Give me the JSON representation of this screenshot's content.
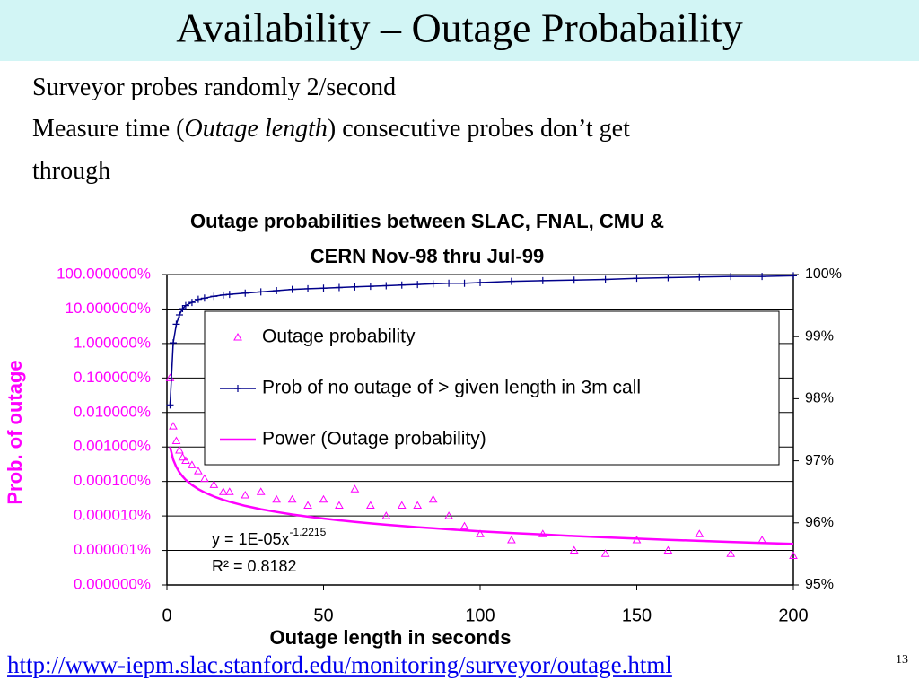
{
  "slide": {
    "title": "Availability – Outage Probabaility",
    "bullets": [
      [
        "Surveyor probes randomly 2/second"
      ],
      [
        "Measure time (",
        "Outage length",
        ") consecutive probes don’t get"
      ],
      [
        "through"
      ]
    ],
    "link": "http://www-iepm.slac.stanford.edu/monitoring/surveyor/outage.html",
    "page_number": "13"
  },
  "chart_data": {
    "type": "line",
    "title": [
      "Outage probabilities between SLAC, FNAL, CMU &",
      "CERN Nov-98 thru Jul-99"
    ],
    "x_label": "Outage length in seconds",
    "y_label": "Prob. of outage",
    "ylog": true,
    "grid": true,
    "xlim": [
      0,
      200
    ],
    "xticks": [
      0,
      50,
      100,
      150,
      200
    ],
    "ylim": [
      1e-07,
      100
    ],
    "yticks": [
      {
        "value": 100,
        "label": "100.000000%"
      },
      {
        "value": 10,
        "label": "10.000000%"
      },
      {
        "value": 1,
        "label": "1.000000%"
      },
      {
        "value": 0.1,
        "label": "0.100000%"
      },
      {
        "value": 0.01,
        "label": "0.010000%"
      },
      {
        "value": 0.001,
        "label": "0.001000%"
      },
      {
        "value": 0.0001,
        "label": "0.000100%"
      },
      {
        "value": 1e-05,
        "label": "0.000010%"
      },
      {
        "value": 1e-06,
        "label": "0.000001%"
      },
      {
        "value": 1e-07,
        "label": "0.000000%"
      }
    ],
    "y2lim": [
      95,
      100
    ],
    "y2ticks": [
      {
        "value": 100,
        "label": "100%"
      },
      {
        "value": 99,
        "label": "99%"
      },
      {
        "value": 98,
        "label": "98%"
      },
      {
        "value": 97,
        "label": "97%"
      },
      {
        "value": 96,
        "label": "96%"
      },
      {
        "value": 95,
        "label": "95%"
      }
    ],
    "series": [
      {
        "name": "Outage probability",
        "color": "#ff00ff",
        "style": "markers",
        "x": [
          1,
          2,
          3,
          4,
          5,
          6,
          8,
          10,
          12,
          15,
          18,
          20,
          25,
          30,
          35,
          40,
          45,
          50,
          55,
          60,
          65,
          70,
          75,
          80,
          85,
          90,
          95,
          100,
          110,
          120,
          130,
          140,
          150,
          160,
          170,
          180,
          190,
          200
        ],
        "values": [
          0.1,
          0.004,
          0.0015,
          0.0008,
          0.0005,
          0.0004,
          0.0003,
          0.0002,
          0.00012,
          8e-05,
          5e-05,
          5e-05,
          4e-05,
          5e-05,
          3e-05,
          3e-05,
          2e-05,
          3e-05,
          2e-05,
          6e-05,
          2e-05,
          1e-05,
          2e-05,
          2e-05,
          3e-05,
          1e-05,
          5e-06,
          3e-06,
          2e-06,
          3e-06,
          1e-06,
          8e-07,
          2e-06,
          1e-06,
          3e-06,
          8e-07,
          2e-06,
          7e-07
        ]
      },
      {
        "name": "Prob of no outage of > given length in 3m call",
        "color": "#00008b",
        "style": "line-markers",
        "axis": "y2",
        "x": [
          1,
          2,
          3,
          4,
          5,
          6,
          8,
          10,
          12,
          15,
          18,
          20,
          25,
          30,
          35,
          40,
          45,
          50,
          55,
          60,
          65,
          70,
          75,
          80,
          85,
          90,
          95,
          100,
          110,
          120,
          130,
          140,
          150,
          160,
          170,
          180,
          190,
          200
        ],
        "values": [
          97.9,
          98.9,
          99.2,
          99.35,
          99.45,
          99.5,
          99.55,
          99.6,
          99.62,
          99.65,
          99.67,
          99.68,
          99.7,
          99.72,
          99.74,
          99.76,
          99.77,
          99.78,
          99.79,
          99.8,
          99.81,
          99.82,
          99.83,
          99.84,
          99.85,
          99.86,
          99.86,
          99.87,
          99.89,
          99.9,
          99.91,
          99.92,
          99.94,
          99.95,
          99.96,
          99.97,
          99.97,
          99.98
        ]
      },
      {
        "name": "Power (Outage probability)",
        "color": "#ff00ff",
        "style": "line",
        "x": [
          1,
          2,
          3,
          4,
          5,
          6,
          8,
          10,
          12,
          15,
          18,
          20,
          25,
          30,
          35,
          40,
          45,
          50,
          55,
          60,
          65,
          70,
          75,
          80,
          85,
          90,
          95,
          100,
          110,
          120,
          130,
          140,
          150,
          160,
          170,
          180,
          190,
          200
        ],
        "values": [
          0.001,
          0.000429,
          0.000261,
          0.000184,
          0.00014,
          0.000112,
          7.89e-05,
          6e-05,
          4.81e-05,
          3.66e-05,
          2.93e-05,
          2.58e-05,
          1.96e-05,
          1.57e-05,
          1.3e-05,
          1.1e-05,
          9.56e-06,
          8.4e-06,
          7.48e-06,
          6.73e-06,
          6.1e-06,
          5.58e-06,
          5.13e-06,
          4.74e-06,
          4.4e-06,
          4.1e-06,
          3.84e-06,
          3.6e-06,
          3.21e-06,
          2.89e-06,
          2.62e-06,
          2.39e-06,
          2.2e-06,
          2.03e-06,
          1.89e-06,
          1.76e-06,
          1.65e-06,
          1.55e-06
        ]
      }
    ],
    "annotations": [
      {
        "text": "y = 1E-05x",
        "superscript": "-1.2215"
      },
      {
        "text": "R² = 0.8182"
      }
    ]
  }
}
